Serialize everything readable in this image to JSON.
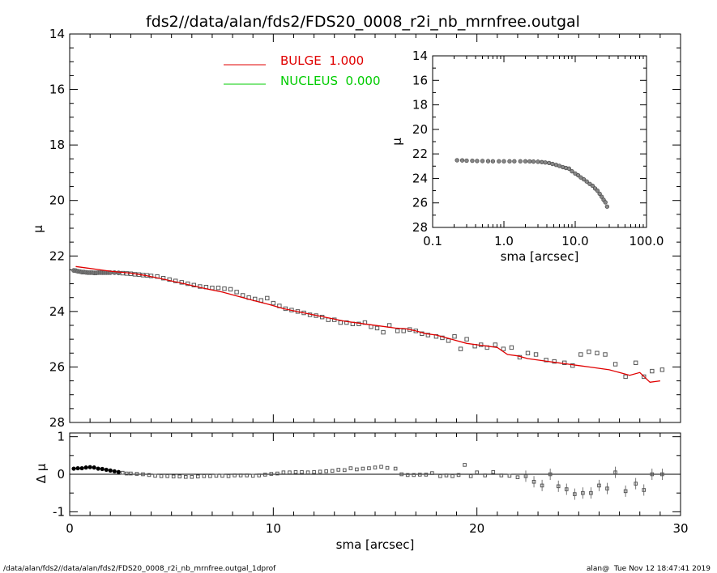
{
  "title": "fds2//data/alan/fds2/FDS20_0008_r2i_nb_mrnfree.outgal",
  "footer_left": "/data/alan/fds2//data/alan/fds2/FDS20_0008_r2i_nb_mrnfree.outgal_1dprof",
  "footer_right": "alan@  Tue Nov 12 18:47:41 2019",
  "colors": {
    "bulge": "#e00000",
    "nucleus": "#00cc00",
    "points": "#555555",
    "axes": "#000000"
  },
  "chart_data": [
    {
      "id": "main",
      "type": "scatter",
      "xlabel": "",
      "ylabel": "μ",
      "xlim": [
        0,
        30
      ],
      "ylim": [
        28,
        14
      ],
      "y_inverted": true,
      "yticks": [
        "14",
        "16",
        "18",
        "20",
        "22",
        "24",
        "26",
        "28"
      ],
      "legend": [
        {
          "label": "BULGE  1.000",
          "color": "#e00000"
        },
        {
          "label": "NUCLEUS  0.000",
          "color": "#00cc00"
        }
      ],
      "legend_position": "top-center",
      "series": [
        {
          "name": "BULGE  1.000",
          "kind": "line",
          "x": [
            0.3,
            1.0,
            2.0,
            3.0,
            3.7,
            4.5,
            5.5,
            6.5,
            7.5,
            8.4,
            9.0,
            9.8,
            10.5,
            11.5,
            12.5,
            13.5,
            14.5,
            15.5,
            16.0,
            16.5,
            17.0,
            17.5,
            18.0,
            18.5,
            19.0,
            19.5,
            20.0,
            20.5,
            21.0,
            21.5,
            22.0,
            22.5,
            23.0,
            23.5,
            24.0,
            24.5,
            25.0,
            25.5,
            26.0,
            26.5,
            27.0,
            27.5,
            28.0,
            28.5,
            29.0
          ],
          "y": [
            22.38,
            22.45,
            22.55,
            22.62,
            22.7,
            22.82,
            22.98,
            23.15,
            23.3,
            23.48,
            23.6,
            23.75,
            23.9,
            24.05,
            24.2,
            24.35,
            24.45,
            24.55,
            24.6,
            24.62,
            24.7,
            24.8,
            24.85,
            24.95,
            25.05,
            25.15,
            25.2,
            25.25,
            25.3,
            25.55,
            25.6,
            25.7,
            25.75,
            25.8,
            25.85,
            25.9,
            25.95,
            26.0,
            26.05,
            26.1,
            26.2,
            26.3,
            26.2,
            26.55,
            26.5
          ]
        },
        {
          "name": "data",
          "kind": "points",
          "x": [
            0.2,
            0.3,
            0.4,
            0.5,
            0.6,
            0.7,
            0.8,
            0.9,
            1.0,
            1.1,
            1.2,
            1.3,
            1.4,
            1.5,
            1.6,
            1.7,
            1.8,
            1.9,
            2.0,
            2.2,
            2.4,
            2.6,
            2.8,
            3.0,
            3.2,
            3.4,
            3.6,
            3.8,
            4.0,
            4.3,
            4.6,
            4.9,
            5.2,
            5.5,
            5.8,
            6.1,
            6.4,
            6.7,
            7.0,
            7.3,
            7.6,
            7.9,
            8.2,
            8.5,
            8.8,
            9.1,
            9.4,
            9.7,
            10.0,
            10.3,
            10.6,
            10.9,
            11.2,
            11.5,
            11.8,
            12.1,
            12.4,
            12.7,
            13.0,
            13.3,
            13.6,
            13.9,
            14.2,
            14.5,
            14.8,
            15.1,
            15.4,
            15.7,
            16.1,
            16.4,
            16.7,
            17.0,
            17.3,
            17.6,
            18.0,
            18.3,
            18.6,
            18.9,
            19.2,
            19.5,
            19.9,
            20.2,
            20.5,
            20.9,
            21.3,
            21.7,
            22.1,
            22.5,
            22.9,
            23.4,
            23.8,
            24.3,
            24.7,
            25.1,
            25.5,
            25.9,
            26.3,
            26.8,
            27.3,
            27.8,
            28.2,
            28.6,
            29.1
          ],
          "y": [
            22.52,
            22.53,
            22.55,
            22.56,
            22.58,
            22.58,
            22.59,
            22.6,
            22.6,
            22.6,
            22.61,
            22.61,
            22.6,
            22.6,
            22.6,
            22.6,
            22.6,
            22.6,
            22.6,
            22.6,
            22.61,
            22.62,
            22.63,
            22.64,
            22.66,
            22.67,
            22.69,
            22.7,
            22.72,
            22.74,
            22.8,
            22.85,
            22.9,
            22.95,
            23.0,
            23.05,
            23.1,
            23.12,
            23.15,
            23.15,
            23.18,
            23.2,
            23.3,
            23.42,
            23.5,
            23.55,
            23.6,
            23.52,
            23.7,
            23.8,
            23.9,
            23.95,
            24.0,
            24.05,
            24.12,
            24.15,
            24.2,
            24.3,
            24.3,
            24.4,
            24.4,
            24.45,
            24.45,
            24.4,
            24.55,
            24.6,
            24.75,
            24.5,
            24.7,
            24.7,
            24.65,
            24.7,
            24.8,
            24.85,
            24.9,
            24.95,
            25.05,
            24.9,
            25.35,
            25.0,
            25.25,
            25.2,
            25.3,
            25.2,
            25.35,
            25.3,
            25.65,
            25.5,
            25.55,
            25.75,
            25.8,
            25.85,
            25.95,
            25.55,
            25.45,
            25.5,
            25.55,
            25.9,
            26.35,
            25.85,
            26.35,
            26.15,
            26.1
          ]
        }
      ]
    },
    {
      "id": "residual",
      "type": "scatter",
      "xlabel": "sma [arcsec]",
      "ylabel": "Δ μ",
      "xlim": [
        0,
        30
      ],
      "ylim": [
        -1.1,
        1.1
      ],
      "xticks": [
        "0",
        "10",
        "20",
        "30"
      ],
      "yticks": [
        "-1",
        "0",
        "1"
      ],
      "series": [
        {
          "name": "residual",
          "kind": "points",
          "x": [
            0.2,
            0.4,
            0.6,
            0.8,
            1.0,
            1.2,
            1.4,
            1.6,
            1.8,
            2.0,
            2.2,
            2.4,
            2.6,
            2.8,
            3.0,
            3.3,
            3.6,
            3.9,
            4.2,
            4.5,
            4.8,
            5.1,
            5.4,
            5.7,
            6.0,
            6.3,
            6.6,
            6.9,
            7.2,
            7.5,
            7.8,
            8.1,
            8.4,
            8.7,
            9.0,
            9.3,
            9.6,
            9.9,
            10.2,
            10.5,
            10.8,
            11.1,
            11.4,
            11.7,
            12.0,
            12.3,
            12.6,
            12.9,
            13.2,
            13.5,
            13.8,
            14.1,
            14.4,
            14.7,
            15.0,
            15.3,
            15.6,
            16.0,
            16.3,
            16.6,
            16.9,
            17.2,
            17.5,
            17.8,
            18.2,
            18.5,
            18.8,
            19.1,
            19.4,
            19.7,
            20.0,
            20.4,
            20.8,
            21.2,
            21.6,
            22.0,
            22.4,
            22.8,
            23.2,
            23.6,
            24.0,
            24.4,
            24.8,
            25.2,
            25.6,
            26.0,
            26.4,
            26.8,
            27.3,
            27.8,
            28.2,
            28.6,
            29.1
          ],
          "y": [
            0.15,
            0.16,
            0.16,
            0.18,
            0.19,
            0.18,
            0.15,
            0.14,
            0.12,
            0.1,
            0.08,
            0.06,
            0.04,
            0.02,
            0.02,
            0.01,
            0.0,
            -0.02,
            -0.04,
            -0.05,
            -0.05,
            -0.06,
            -0.06,
            -0.07,
            -0.07,
            -0.06,
            -0.05,
            -0.05,
            -0.04,
            -0.04,
            -0.05,
            -0.03,
            -0.03,
            -0.03,
            -0.04,
            -0.03,
            -0.01,
            0.01,
            0.02,
            0.05,
            0.05,
            0.06,
            0.06,
            0.05,
            0.06,
            0.07,
            0.08,
            0.09,
            0.12,
            0.11,
            0.16,
            0.13,
            0.15,
            0.16,
            0.18,
            0.2,
            0.17,
            0.15,
            0.0,
            -0.02,
            -0.02,
            -0.01,
            -0.01,
            0.03,
            -0.05,
            -0.03,
            -0.05,
            -0.02,
            0.25,
            -0.05,
            0.05,
            -0.03,
            0.06,
            -0.03,
            -0.04,
            -0.08,
            -0.05,
            -0.2,
            -0.3,
            -0.0,
            -0.32,
            -0.4,
            -0.53,
            -0.5,
            -0.5,
            -0.3,
            -0.38,
            0.05,
            -0.45,
            -0.25,
            -0.42,
            0.0,
            0.0
          ]
        }
      ]
    },
    {
      "id": "inset",
      "type": "scatter",
      "xscale": "log",
      "xlabel": "sma [arcsec]",
      "ylabel": "μ",
      "xlim": [
        0.1,
        100
      ],
      "ylim": [
        28,
        14
      ],
      "y_inverted": true,
      "xticks": [
        "0.1",
        "1.0",
        "10.0",
        "100.0"
      ],
      "yticks": [
        "14",
        "16",
        "18",
        "20",
        "22",
        "24",
        "26",
        "28"
      ],
      "series": [
        {
          "name": "data",
          "kind": "points",
          "x": [
            0.22,
            0.26,
            0.3,
            0.36,
            0.42,
            0.5,
            0.6,
            0.7,
            0.85,
            1.0,
            1.2,
            1.4,
            1.7,
            2.0,
            2.3,
            2.6,
            3.0,
            3.4,
            3.8,
            4.3,
            4.8,
            5.4,
            6.0,
            6.7,
            7.4,
            8.2,
            9.0,
            10.0,
            11.0,
            12.0,
            13.2,
            14.5,
            16.0,
            17.5,
            19.0,
            20.5,
            22.0,
            23.5,
            25.0,
            26.5,
            28.0
          ],
          "y": [
            22.52,
            22.53,
            22.55,
            22.56,
            22.58,
            22.58,
            22.59,
            22.6,
            22.6,
            22.6,
            22.6,
            22.6,
            22.6,
            22.6,
            22.61,
            22.63,
            22.64,
            22.67,
            22.7,
            22.74,
            22.82,
            22.9,
            22.98,
            23.08,
            23.15,
            23.2,
            23.42,
            23.6,
            23.75,
            23.92,
            24.08,
            24.25,
            24.45,
            24.6,
            24.82,
            25.0,
            25.25,
            25.5,
            25.75,
            25.95,
            26.3
          ]
        }
      ]
    }
  ]
}
